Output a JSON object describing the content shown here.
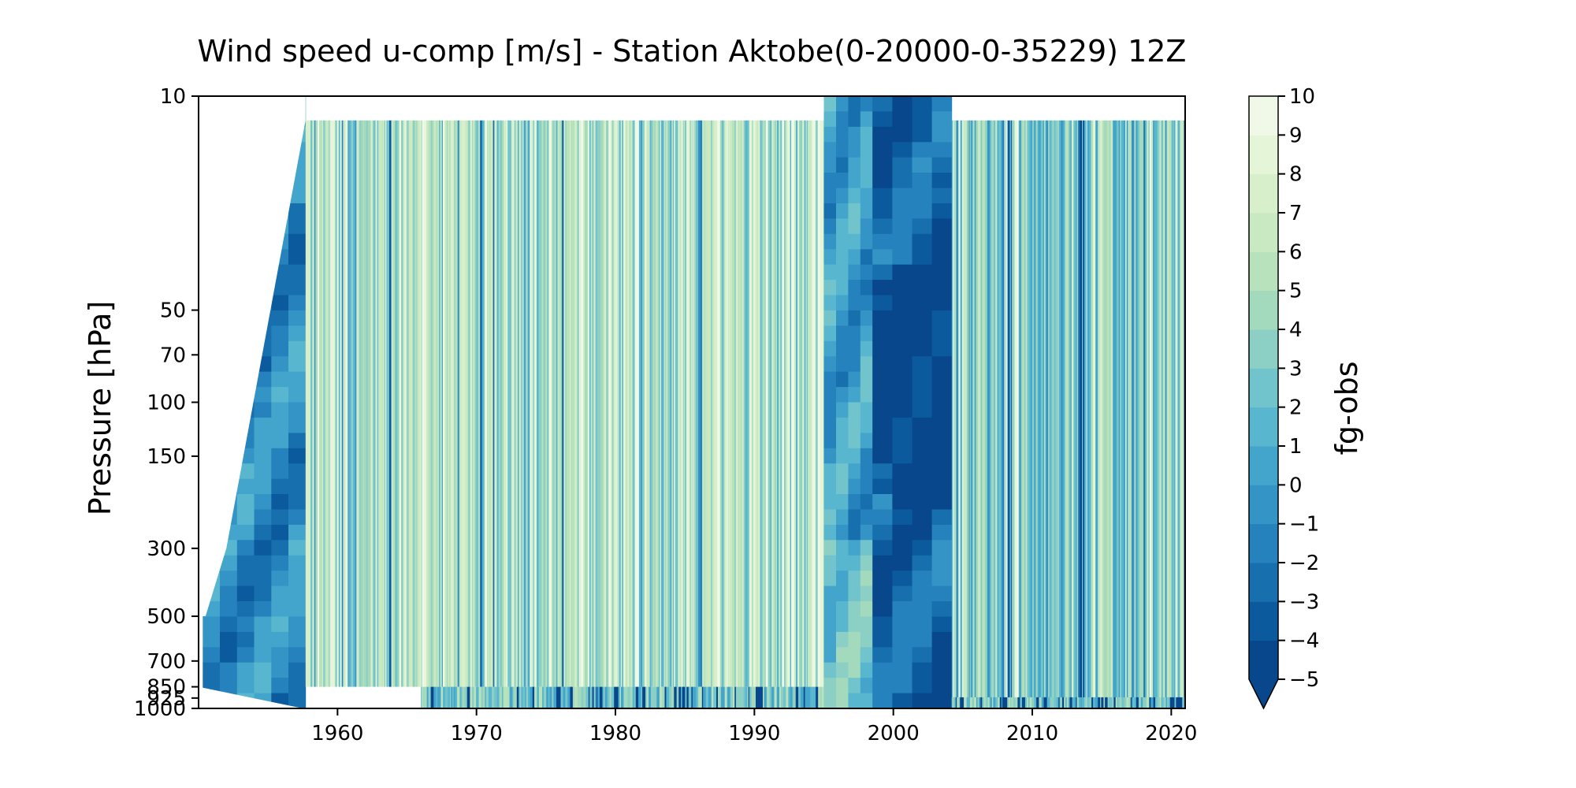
{
  "chart_data": {
    "type": "heatmap",
    "subtype": "filled-contour time-pressure section",
    "title": "Wind speed u-comp [m/s] - Station Aktobe(0-20000-0-35229) 12Z",
    "xlabel": "",
    "ylabel": "Pressure [hPa]",
    "colorbar_label": "fg-obs",
    "colormap": "GnBu_r",
    "x_ticks": [
      1960,
      1970,
      1980,
      1990,
      2000,
      2010,
      2020
    ],
    "xlim": [
      1950,
      2021
    ],
    "y_ticks": [
      10,
      50,
      70,
      100,
      150,
      300,
      500,
      700,
      850,
      925,
      1000
    ],
    "y_scale": "log",
    "ylim": [
      1000,
      10
    ],
    "colorbar_ticks": [
      10,
      9,
      8,
      7,
      6,
      5,
      4,
      3,
      2,
      1,
      0,
      -1,
      -2,
      -3,
      -4,
      -5
    ],
    "colorbar_range": [
      -5,
      10
    ],
    "colorbar_extend": "min",
    "colorbar_colors": [
      "#08478c",
      "#0b5a9e",
      "#176fae",
      "#2582bc",
      "#3494c6",
      "#44a5cc",
      "#58b6cf",
      "#71c4cb",
      "#8bcfc5",
      "#a3d9bd",
      "#b8e2bc",
      "#c9e9c3",
      "#d8efcb",
      "#e5f5d8",
      "#f0f9e8"
    ],
    "colorbar_under_color": "#08478c",
    "data_segments": [
      {
        "start": 1950.3,
        "end": 1957.7,
        "pattern": "sparse interpolated contours",
        "dominant_value": -1
      },
      {
        "start": 1957.7,
        "end": 1995.0,
        "pattern": "dense striped",
        "dominant_value": 5
      },
      {
        "start": 1995.0,
        "end": 1998.5,
        "pattern": "smooth contours",
        "dominant_value": 0
      },
      {
        "start": 1998.5,
        "end": 2004.2,
        "pattern": "smooth contours",
        "dominant_value": -3
      },
      {
        "start": 2004.2,
        "end": 2021.0,
        "pattern": "dense striped",
        "dominant_value": 3
      }
    ]
  }
}
